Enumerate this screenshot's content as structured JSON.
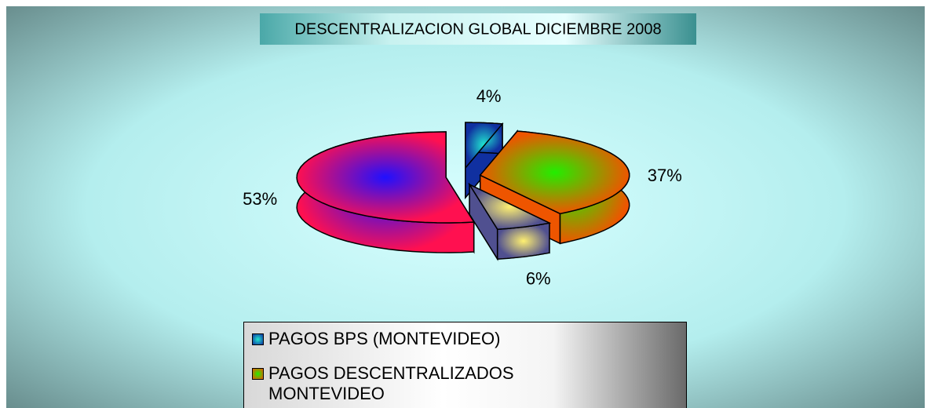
{
  "chart_data": {
    "type": "pie",
    "title": "DESCENTRALIZACION GLOBAL DICIEMBRE 2008",
    "categories": [
      "PAGOS BPS (MONTEVIDEO)",
      "PAGOS DESCENTRALIZADOS MONTEVIDEO",
      null,
      null
    ],
    "values": [
      4,
      37,
      6,
      53
    ],
    "value_labels": [
      "4%",
      "37%",
      "6%",
      "53%"
    ],
    "colors": [
      "#20e8d0",
      "#22ee00",
      "#fff070",
      "#2010ff"
    ],
    "edge_colors": [
      "#1030a0",
      "#ee5500",
      "#505090",
      "#ff1050"
    ],
    "legend": "bottom"
  }
}
